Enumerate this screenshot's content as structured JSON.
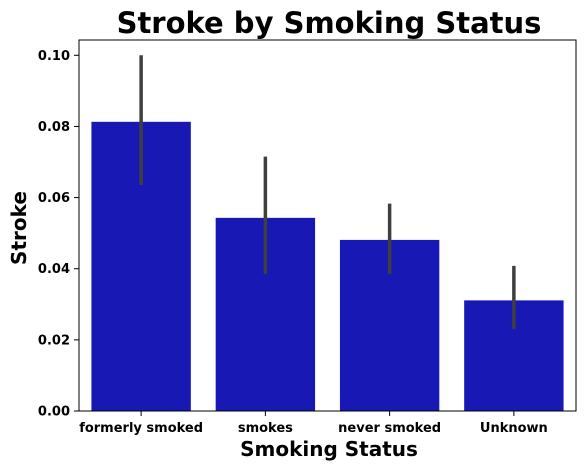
{
  "chart_data": {
    "type": "bar",
    "title": "Stroke by Smoking Status",
    "xlabel": "Smoking Status",
    "ylabel": "Stroke",
    "categories": [
      "formerly smoked",
      "smokes",
      "never smoked",
      "Unknown"
    ],
    "values": [
      0.0813,
      0.0543,
      0.0481,
      0.0311
    ],
    "error_low": [
      0.0635,
      0.0385,
      0.0385,
      0.023
    ],
    "error_high": [
      0.1,
      0.0715,
      0.0583,
      0.0408
    ],
    "ylim": [
      0,
      0.1043
    ],
    "yticks": [
      0.0,
      0.02,
      0.04,
      0.06,
      0.08,
      0.1
    ],
    "ytick_labels": [
      "0.00",
      "0.02",
      "0.04",
      "0.06",
      "0.08",
      "0.10"
    ],
    "bar_color": "#1818b4",
    "error_color": "#3f3f3f",
    "grid": false,
    "legend": "none"
  }
}
